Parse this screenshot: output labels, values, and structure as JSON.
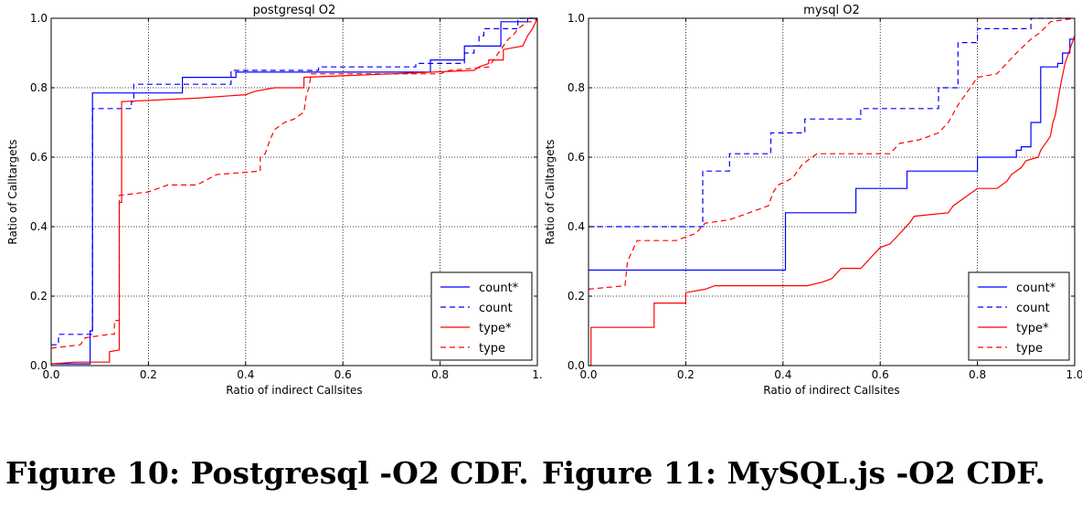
{
  "captions": [
    "Figure 10: Postgresql -O2 CDF.",
    "Figure 11: MySQL.js -O2 CDF."
  ],
  "colors": {
    "blue": "#0000ff",
    "red": "#ff0000"
  },
  "chart_data": [
    {
      "type": "line",
      "step": true,
      "title": "postgresql O2",
      "xlabel": "Ratio of indirect Callsites",
      "ylabel": "Ratio of Calltargets",
      "xlim": [
        0,
        1
      ],
      "ylim": [
        0,
        1
      ],
      "xticks": [
        "0.0",
        "0.2",
        "0.4",
        "0.6",
        "0.8",
        "1."
      ],
      "yticks": [
        "0.0",
        "0.2",
        "0.4",
        "0.6",
        "0.8",
        "1.0"
      ],
      "grid": true,
      "legend": "bottom-right",
      "series": [
        {
          "name": "count*",
          "color": "#0000ff",
          "dash": false,
          "points": [
            [
              0,
              0.005
            ],
            [
              0.08,
              0.005
            ],
            [
              0.08,
              0.1
            ],
            [
              0.085,
              0.1
            ],
            [
              0.085,
              0.785
            ],
            [
              0.27,
              0.785
            ],
            [
              0.27,
              0.83
            ],
            [
              0.38,
              0.83
            ],
            [
              0.38,
              0.845
            ],
            [
              0.78,
              0.845
            ],
            [
              0.78,
              0.88
            ],
            [
              0.85,
              0.88
            ],
            [
              0.85,
              0.92
            ],
            [
              0.925,
              0.92
            ],
            [
              0.925,
              0.99
            ],
            [
              0.98,
              0.99
            ],
            [
              0.98,
              1.0
            ],
            [
              1.0,
              1.0
            ]
          ]
        },
        {
          "name": "count",
          "color": "#0000ff",
          "dash": true,
          "points": [
            [
              0,
              0.06
            ],
            [
              0.015,
              0.06
            ],
            [
              0.015,
              0.09
            ],
            [
              0.085,
              0.09
            ],
            [
              0.085,
              0.74
            ],
            [
              0.165,
              0.74
            ],
            [
              0.165,
              0.76
            ],
            [
              0.17,
              0.76
            ],
            [
              0.17,
              0.81
            ],
            [
              0.37,
              0.81
            ],
            [
              0.37,
              0.85
            ],
            [
              0.55,
              0.85
            ],
            [
              0.55,
              0.86
            ],
            [
              0.75,
              0.86
            ],
            [
              0.75,
              0.87
            ],
            [
              0.85,
              0.87
            ],
            [
              0.85,
              0.9
            ],
            [
              0.87,
              0.9
            ],
            [
              0.87,
              0.92
            ],
            [
              0.88,
              0.92
            ],
            [
              0.88,
              0.95
            ],
            [
              0.89,
              0.95
            ],
            [
              0.89,
              0.97
            ],
            [
              0.96,
              0.97
            ],
            [
              0.96,
              1.0
            ],
            [
              1.0,
              1.0
            ]
          ]
        },
        {
          "name": "type*",
          "color": "#ff0000",
          "dash": false,
          "points": [
            [
              0,
              0.005
            ],
            [
              0.05,
              0.01
            ],
            [
              0.12,
              0.01
            ],
            [
              0.12,
              0.04
            ],
            [
              0.14,
              0.045
            ],
            [
              0.14,
              0.47
            ],
            [
              0.145,
              0.47
            ],
            [
              0.145,
              0.76
            ],
            [
              0.3,
              0.77
            ],
            [
              0.4,
              0.78
            ],
            [
              0.42,
              0.79
            ],
            [
              0.46,
              0.8
            ],
            [
              0.52,
              0.8
            ],
            [
              0.52,
              0.83
            ],
            [
              0.7,
              0.84
            ],
            [
              0.87,
              0.85
            ],
            [
              0.88,
              0.86
            ],
            [
              0.9,
              0.87
            ],
            [
              0.9,
              0.88
            ],
            [
              0.93,
              0.88
            ],
            [
              0.93,
              0.91
            ],
            [
              0.97,
              0.92
            ],
            [
              0.98,
              0.95
            ],
            [
              0.99,
              0.97
            ],
            [
              1.0,
              1.0
            ]
          ]
        },
        {
          "name": "type",
          "color": "#ff0000",
          "dash": true,
          "points": [
            [
              0,
              0.05
            ],
            [
              0.06,
              0.06
            ],
            [
              0.07,
              0.08
            ],
            [
              0.12,
              0.09
            ],
            [
              0.13,
              0.09
            ],
            [
              0.13,
              0.13
            ],
            [
              0.14,
              0.13
            ],
            [
              0.14,
              0.49
            ],
            [
              0.2,
              0.5
            ],
            [
              0.24,
              0.52
            ],
            [
              0.3,
              0.52
            ],
            [
              0.34,
              0.55
            ],
            [
              0.43,
              0.56
            ],
            [
              0.43,
              0.6
            ],
            [
              0.44,
              0.61
            ],
            [
              0.45,
              0.65
            ],
            [
              0.46,
              0.68
            ],
            [
              0.48,
              0.7
            ],
            [
              0.5,
              0.71
            ],
            [
              0.52,
              0.73
            ],
            [
              0.525,
              0.78
            ],
            [
              0.53,
              0.8
            ],
            [
              0.535,
              0.84
            ],
            [
              0.8,
              0.84
            ],
            [
              0.82,
              0.85
            ],
            [
              0.9,
              0.86
            ],
            [
              0.91,
              0.88
            ],
            [
              0.92,
              0.9
            ],
            [
              0.94,
              0.94
            ],
            [
              0.95,
              0.95
            ],
            [
              0.96,
              0.97
            ],
            [
              0.97,
              0.98
            ],
            [
              0.98,
              0.99
            ],
            [
              0.99,
              0.99
            ],
            [
              1.0,
              1.0
            ]
          ]
        }
      ]
    },
    {
      "type": "line",
      "step": true,
      "title": "mysql O2",
      "xlabel": "Ratio of indirect Callsites",
      "ylabel": "Ratio of Calltargets",
      "xlim": [
        0,
        1
      ],
      "ylim": [
        0,
        1
      ],
      "xticks": [
        "0.0",
        "0.2",
        "0.4",
        "0.6",
        "0.8",
        "1.0"
      ],
      "yticks": [
        "0.0",
        "0.2",
        "0.4",
        "0.6",
        "0.8",
        "1.0"
      ],
      "grid": true,
      "legend": "bottom-right",
      "series": [
        {
          "name": "count*",
          "color": "#0000ff",
          "dash": false,
          "points": [
            [
              0,
              0.275
            ],
            [
              0.405,
              0.275
            ],
            [
              0.405,
              0.44
            ],
            [
              0.55,
              0.44
            ],
            [
              0.55,
              0.51
            ],
            [
              0.655,
              0.51
            ],
            [
              0.655,
              0.56
            ],
            [
              0.8,
              0.56
            ],
            [
              0.8,
              0.6
            ],
            [
              0.88,
              0.6
            ],
            [
              0.88,
              0.62
            ],
            [
              0.89,
              0.62
            ],
            [
              0.89,
              0.63
            ],
            [
              0.91,
              0.63
            ],
            [
              0.91,
              0.7
            ],
            [
              0.93,
              0.7
            ],
            [
              0.93,
              0.86
            ],
            [
              0.965,
              0.86
            ],
            [
              0.965,
              0.87
            ],
            [
              0.975,
              0.87
            ],
            [
              0.975,
              0.9
            ],
            [
              0.99,
              0.9
            ],
            [
              0.99,
              0.94
            ],
            [
              1.0,
              0.94
            ]
          ]
        },
        {
          "name": "count",
          "color": "#0000ff",
          "dash": true,
          "points": [
            [
              0,
              0.4
            ],
            [
              0.235,
              0.4
            ],
            [
              0.235,
              0.56
            ],
            [
              0.29,
              0.56
            ],
            [
              0.29,
              0.61
            ],
            [
              0.375,
              0.61
            ],
            [
              0.375,
              0.67
            ],
            [
              0.445,
              0.67
            ],
            [
              0.445,
              0.71
            ],
            [
              0.56,
              0.71
            ],
            [
              0.56,
              0.74
            ],
            [
              0.72,
              0.74
            ],
            [
              0.72,
              0.8
            ],
            [
              0.76,
              0.8
            ],
            [
              0.76,
              0.93
            ],
            [
              0.8,
              0.93
            ],
            [
              0.8,
              0.97
            ],
            [
              0.91,
              0.97
            ],
            [
              0.91,
              1.0
            ],
            [
              1.0,
              1.0
            ]
          ]
        },
        {
          "name": "type*",
          "color": "#ff0000",
          "dash": false,
          "points": [
            [
              0,
              0.0
            ],
            [
              0.005,
              0.0
            ],
            [
              0.005,
              0.11
            ],
            [
              0.135,
              0.11
            ],
            [
              0.135,
              0.18
            ],
            [
              0.2,
              0.18
            ],
            [
              0.2,
              0.21
            ],
            [
              0.24,
              0.22
            ],
            [
              0.26,
              0.23
            ],
            [
              0.45,
              0.23
            ],
            [
              0.48,
              0.24
            ],
            [
              0.5,
              0.25
            ],
            [
              0.52,
              0.28
            ],
            [
              0.56,
              0.28
            ],
            [
              0.58,
              0.31
            ],
            [
              0.6,
              0.34
            ],
            [
              0.62,
              0.35
            ],
            [
              0.64,
              0.38
            ],
            [
              0.66,
              0.41
            ],
            [
              0.67,
              0.43
            ],
            [
              0.74,
              0.44
            ],
            [
              0.75,
              0.46
            ],
            [
              0.77,
              0.48
            ],
            [
              0.79,
              0.5
            ],
            [
              0.8,
              0.51
            ],
            [
              0.84,
              0.51
            ],
            [
              0.86,
              0.53
            ],
            [
              0.87,
              0.55
            ],
            [
              0.89,
              0.57
            ],
            [
              0.9,
              0.59
            ],
            [
              0.925,
              0.6
            ],
            [
              0.93,
              0.62
            ],
            [
              0.94,
              0.64
            ],
            [
              0.95,
              0.66
            ],
            [
              0.955,
              0.7
            ],
            [
              0.96,
              0.72
            ],
            [
              0.97,
              0.8
            ],
            [
              0.98,
              0.87
            ],
            [
              0.99,
              0.91
            ],
            [
              1.0,
              0.95
            ]
          ]
        },
        {
          "name": "type",
          "color": "#ff0000",
          "dash": true,
          "points": [
            [
              0,
              0.22
            ],
            [
              0.075,
              0.23
            ],
            [
              0.08,
              0.3
            ],
            [
              0.09,
              0.33
            ],
            [
              0.1,
              0.36
            ],
            [
              0.18,
              0.36
            ],
            [
              0.22,
              0.38
            ],
            [
              0.24,
              0.41
            ],
            [
              0.29,
              0.42
            ],
            [
              0.33,
              0.44
            ],
            [
              0.37,
              0.46
            ],
            [
              0.38,
              0.5
            ],
            [
              0.39,
              0.52
            ],
            [
              0.42,
              0.54
            ],
            [
              0.44,
              0.58
            ],
            [
              0.47,
              0.61
            ],
            [
              0.62,
              0.61
            ],
            [
              0.64,
              0.64
            ],
            [
              0.68,
              0.65
            ],
            [
              0.7,
              0.66
            ],
            [
              0.72,
              0.67
            ],
            [
              0.74,
              0.7
            ],
            [
              0.76,
              0.75
            ],
            [
              0.78,
              0.79
            ],
            [
              0.8,
              0.83
            ],
            [
              0.84,
              0.84
            ],
            [
              0.86,
              0.87
            ],
            [
              0.88,
              0.9
            ],
            [
              0.91,
              0.94
            ],
            [
              0.93,
              0.96
            ],
            [
              0.95,
              0.99
            ],
            [
              1.0,
              1.0
            ]
          ]
        }
      ]
    }
  ]
}
